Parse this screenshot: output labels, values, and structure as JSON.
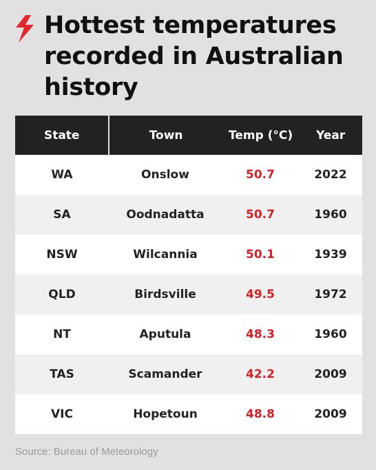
{
  "title": "Hottest temperatures recorded in Australian history",
  "source": "Source: Bureau of Meteorology",
  "colors": {
    "accent": "#d61f26",
    "header_bg": "#222222",
    "background": "#e1e1e1"
  },
  "logo_icon": "sbs-logo-icon",
  "chart_data": {
    "type": "table",
    "columns": [
      "State",
      "Town",
      "Temp (°C)",
      "Year"
    ],
    "rows": [
      [
        "WA",
        "Onslow",
        "50.7",
        "2022"
      ],
      [
        "SA",
        "Oodnadatta",
        "50.7",
        "1960"
      ],
      [
        "NSW",
        "Wilcannia",
        "50.1",
        "1939"
      ],
      [
        "QLD",
        "Birdsville",
        "49.5",
        "1972"
      ],
      [
        "NT",
        "Aputula",
        "48.3",
        "1960"
      ],
      [
        "TAS",
        "Scamander",
        "42.2",
        "2009"
      ],
      [
        "VIC",
        "Hopetoun",
        "48.8",
        "2009"
      ]
    ]
  }
}
